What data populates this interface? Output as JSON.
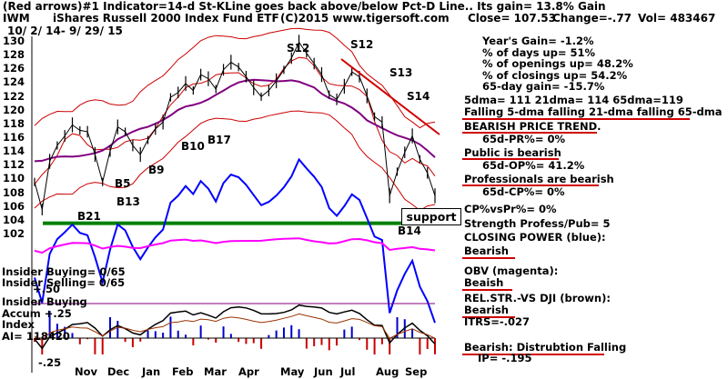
{
  "header": {
    "line1": "(Red arrows)#1 Indicator=14-d St-KLine goes back above/below Pct-D Line.. Its gain= 13.8% Gain",
    "symbol": "IWM",
    "fund": "iShares Russell 2000 Index Fund ETF",
    "copyright": "(C)2015 www.tigersoft.com",
    "close": "Close= 107.53",
    "change": "Change=-.77",
    "vol": "Vol= 483467",
    "daterange": "10/ 2/ 14- 9/ 29/ 15"
  },
  "stats": {
    "years_gain": "Year's Gain= -1.2%",
    "days_up": "% of days up= 51%",
    "openings_up": "% of openings up= 48.2%",
    "closings_up": "% of closings up= 54.2%",
    "day65_gain": "65-day gain= -15.7%",
    "dma_values": "5dma= 111 21dma= 114 65dma=119",
    "falling": "Falling 5-dma falling 21-dma falling 65-dma",
    "bearish_trend": "BEARISH PRICE TREND.",
    "pr65": "65d-PR%= 0%",
    "public_bearish": "Public is bearish",
    "op65": "65d-OP%= 41.2%",
    "pros_bearish": "Professionals are bearish",
    "cp65": "65d-CP%= 0%",
    "cpvspr": "CP%vsPr%=  0%",
    "strength": "Strength Profess/Pub= 5",
    "closing_power": "CLOSING POWER (blue):",
    "closing_bearish": "Bearish",
    "obv": "OBV (magenta):",
    "obv_bearish": "Beaish",
    "relstr": "REL.STR.-VS DJI (brown):",
    "relstr_bearish": "Bearish",
    "itrs": "ITRS=-.027",
    "distribution": "Bearish: Distrubtion Falling",
    "ip": "IP= -.195"
  },
  "labels": {
    "support": "support",
    "b21": "B21",
    "b13": "B13",
    "b9": "B9",
    "b10": "B10",
    "b17": "B17",
    "b15": "B5",
    "b14": "B14",
    "s12a": "S12",
    "s12b": "S12",
    "s13": "S13",
    "s14": "S14",
    "insider_buying": "Insider Buying= 0/65",
    "insider_selling": "Insider Selling= 0/65",
    "plus50": "+.50",
    "insider_buying2": "Insider Buying",
    "accum": "Accum +.25",
    "index": "Index",
    "ai": "AI= 118420",
    "minus25": "-.25"
  },
  "colors": {
    "price": "#000000",
    "ma": "#cc0000",
    "ma65": "#800080",
    "closing_power": "#0000ff",
    "obv": "#ff00ff",
    "support": "#008000",
    "accum_pos": "#0000cc",
    "accum_neg": "#cc0000",
    "warn": "#d00000"
  },
  "chart_data": {
    "type": "line",
    "title": "iShares Russell 2000 Index Fund ETF",
    "ylim": [
      100,
      131
    ],
    "yticks": [
      102,
      104,
      106,
      108,
      110,
      112,
      114,
      116,
      118,
      120,
      122,
      124,
      126,
      128,
      130
    ],
    "ytick_labels": [
      "102",
      "104",
      "106",
      "108",
      "110",
      "112",
      "114",
      "116",
      "118",
      "120",
      "122",
      "124",
      "126",
      "128",
      "130"
    ],
    "x_labels": [
      "Nov",
      "Dec",
      "Jan",
      "Feb",
      "Mar",
      "Apr",
      "May",
      "Jun",
      "Jul",
      "Aug",
      "Sep"
    ],
    "support_level": 103.5,
    "series": [
      {
        "name": "",
        "values": [
          109.5,
          105.5,
          112.5,
          114.8,
          116.2,
          117.8,
          117.0,
          116.8,
          113.5,
          109.5,
          114.0,
          117.5,
          116.8,
          114.8,
          113.5,
          115.6,
          117.2,
          118.2,
          121.8,
          122.5,
          123.8,
          122.8,
          125.1,
          124.5,
          123.0,
          125.8,
          126.9,
          126.2,
          124.8,
          123.2,
          121.9,
          122.8,
          124.2,
          125.8,
          127.5,
          129.8,
          128.2,
          126.7,
          125.1,
          122.2,
          121.5,
          123.4,
          125.5,
          124.8,
          122.0,
          119.0,
          118.2,
          107.5,
          111.0,
          113.8,
          116.2,
          112.8,
          110.8,
          107.5
        ]
      }
    ]
  }
}
